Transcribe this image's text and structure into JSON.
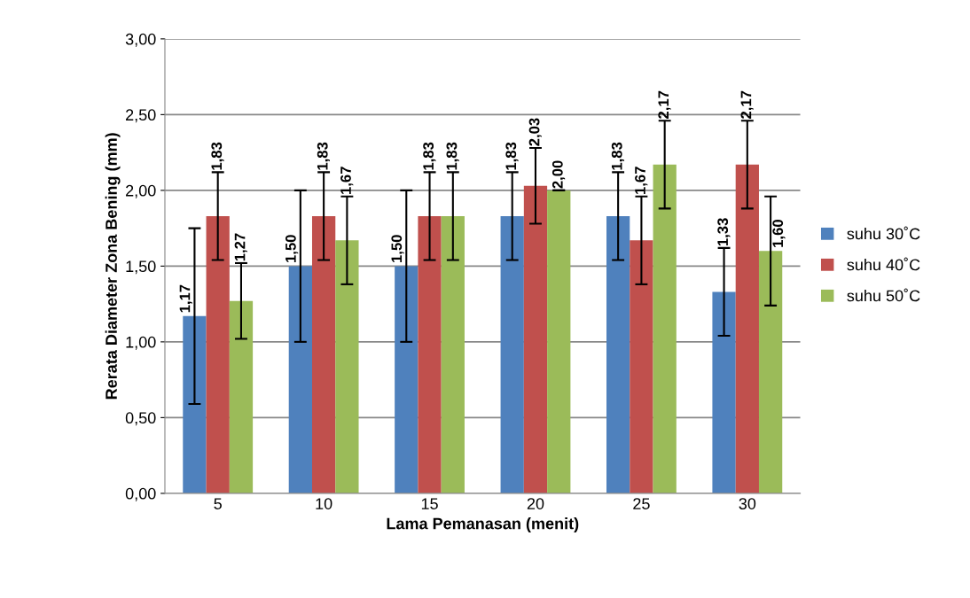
{
  "chart_data": {
    "type": "bar",
    "xlabel": "Lama Pemanasan (menit)",
    "ylabel": "Rerata Diameter Zona Bening (mm)",
    "categories": [
      "5",
      "10",
      "15",
      "20",
      "25",
      "30"
    ],
    "series": [
      {
        "name": "suhu 30˚C",
        "color": "#4f81bd",
        "values": [
          1.17,
          1.5,
          1.5,
          1.83,
          1.83,
          1.33
        ],
        "errors": [
          0.58,
          0.5,
          0.5,
          0.29,
          0.29,
          0.29
        ],
        "value_labels": [
          "1,17",
          "1,50",
          "1,50",
          "1,83",
          "1,83",
          "1,33"
        ]
      },
      {
        "name": "suhu 40˚C",
        "color": "#c0504d",
        "values": [
          1.83,
          1.83,
          1.83,
          2.03,
          1.67,
          2.17
        ],
        "errors": [
          0.29,
          0.29,
          0.29,
          0.25,
          0.29,
          0.29
        ],
        "value_labels": [
          "1,83",
          "1,83",
          "1,83",
          "2,03",
          "1,67",
          "2,17"
        ]
      },
      {
        "name": "suhu 50˚C",
        "color": "#9bbb59",
        "values": [
          1.27,
          1.67,
          1.83,
          2.0,
          2.17,
          1.6
        ],
        "errors": [
          0.25,
          0.29,
          0.29,
          0,
          0.29,
          0.36
        ],
        "value_labels": [
          "1,27",
          "1,67",
          "1,83",
          "2,00",
          "2,17",
          "1,60"
        ]
      }
    ],
    "ylim": [
      0,
      3
    ],
    "yticks": [
      {
        "value": 0,
        "label": "0,00"
      },
      {
        "value": 0.5,
        "label": "0,50"
      },
      {
        "value": 1,
        "label": "1,00"
      },
      {
        "value": 1.5,
        "label": "1,50"
      },
      {
        "value": 2,
        "label": "2,00"
      },
      {
        "value": 2.5,
        "label": "2,50"
      },
      {
        "value": 3,
        "label": "3,00"
      }
    ],
    "grid": "y",
    "legend": "right"
  }
}
